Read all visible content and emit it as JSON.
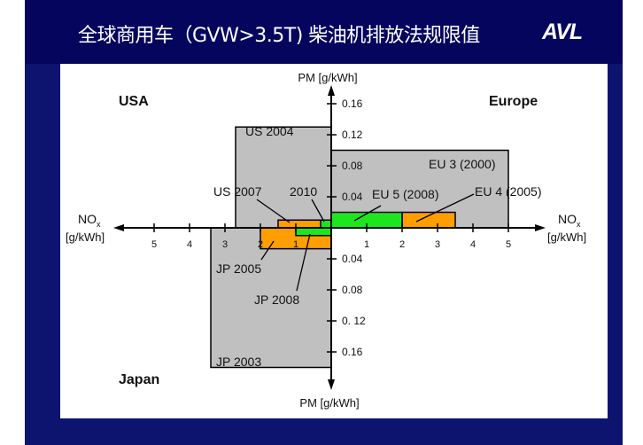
{
  "header": {
    "title": "全球商用车（GVW>3.5T) 柴油机排放法规限值",
    "logo": "AVL"
  },
  "colors": {
    "gray": "#c0c0c0",
    "orange": "#ff9e00",
    "green": "#1ee61e",
    "navy": "#05055e"
  },
  "chart_data": {
    "type": "diagram",
    "regions": {
      "top_left": "USA",
      "top_right": "Europe",
      "bottom_left": "Japan"
    },
    "axes": {
      "pm_top": "PM [g/kWh]",
      "pm_bottom": "PM [g/kWh]",
      "nox_main": "NO",
      "nox_sub": "x",
      "nox_unit": "[g/kWh]",
      "x_ticks": [
        "1",
        "2",
        "3",
        "4",
        "5"
      ],
      "y_ticks_up": [
        "0.04",
        "0.08",
        "0.12",
        "0.16"
      ],
      "y_ticks_down": [
        "0.04",
        "0.08",
        "0. 12",
        "0.16"
      ]
    },
    "limits": [
      {
        "name": "US 2004",
        "nox": 2.7,
        "pm": 0.13,
        "side": "usa",
        "color": "gray"
      },
      {
        "name": "EU 3 (2000)",
        "nox": 5.0,
        "pm": 0.1,
        "side": "eu",
        "color": "gray"
      },
      {
        "name": "JP 2003",
        "nox": 3.4,
        "pm": 0.18,
        "side": "jp",
        "color": "gray"
      },
      {
        "name": "EU 4 (2005)",
        "nox": 3.5,
        "pm": 0.02,
        "side": "eu",
        "color": "orange"
      },
      {
        "name": "EU 5 (2008)",
        "nox": 2.0,
        "pm": 0.02,
        "side": "eu",
        "color": "green"
      },
      {
        "name": "US 2007",
        "nox": 1.5,
        "pm": 0.01,
        "side": "usa",
        "color": "orange"
      },
      {
        "name": "2010",
        "nox": 0.3,
        "pm": 0.01,
        "side": "usa",
        "color": "green"
      },
      {
        "name": "JP 2005",
        "nox": 2.0,
        "pm": 0.027,
        "side": "jp",
        "color": "orange"
      },
      {
        "name": "JP 2008",
        "nox": 1.0,
        "pm": 0.01,
        "side": "jp",
        "color": "green"
      }
    ]
  }
}
